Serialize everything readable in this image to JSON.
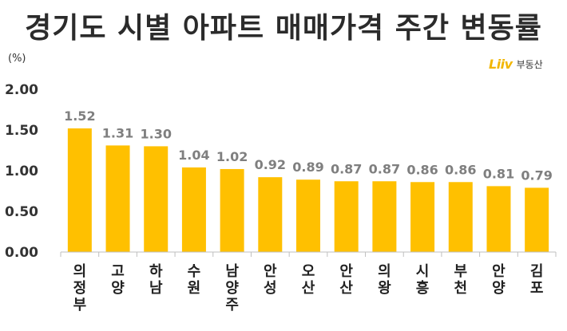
{
  "chart_data": {
    "type": "bar",
    "title": "경기도 시별 아파트 매매가격 주간 변동률",
    "ylabel": "(%)",
    "brand": "부동산",
    "brand_logo": "Liiv",
    "categories": [
      "의정부",
      "고양",
      "하남",
      "수원",
      "남양주",
      "안성",
      "오산",
      "안산",
      "의왕",
      "시흥",
      "부천",
      "안양",
      "김포"
    ],
    "values": [
      1.52,
      1.31,
      1.3,
      1.04,
      1.02,
      0.92,
      0.89,
      0.87,
      0.87,
      0.86,
      0.86,
      0.81,
      0.79
    ],
    "value_labels": [
      "1.52",
      "1.31",
      "1.30",
      "1.04",
      "1.02",
      "0.92",
      "0.89",
      "0.87",
      "0.87",
      "0.86",
      "0.86",
      "0.81",
      "0.79"
    ],
    "ylim": [
      0,
      2
    ],
    "yticks": [
      "0.00",
      "0.50",
      "1.00",
      "1.50",
      "2.00"
    ],
    "grid": false,
    "colors": {
      "bar": "#ffc000",
      "value_label": "#7f7f7f",
      "axis": "#bfbfbf"
    }
  }
}
